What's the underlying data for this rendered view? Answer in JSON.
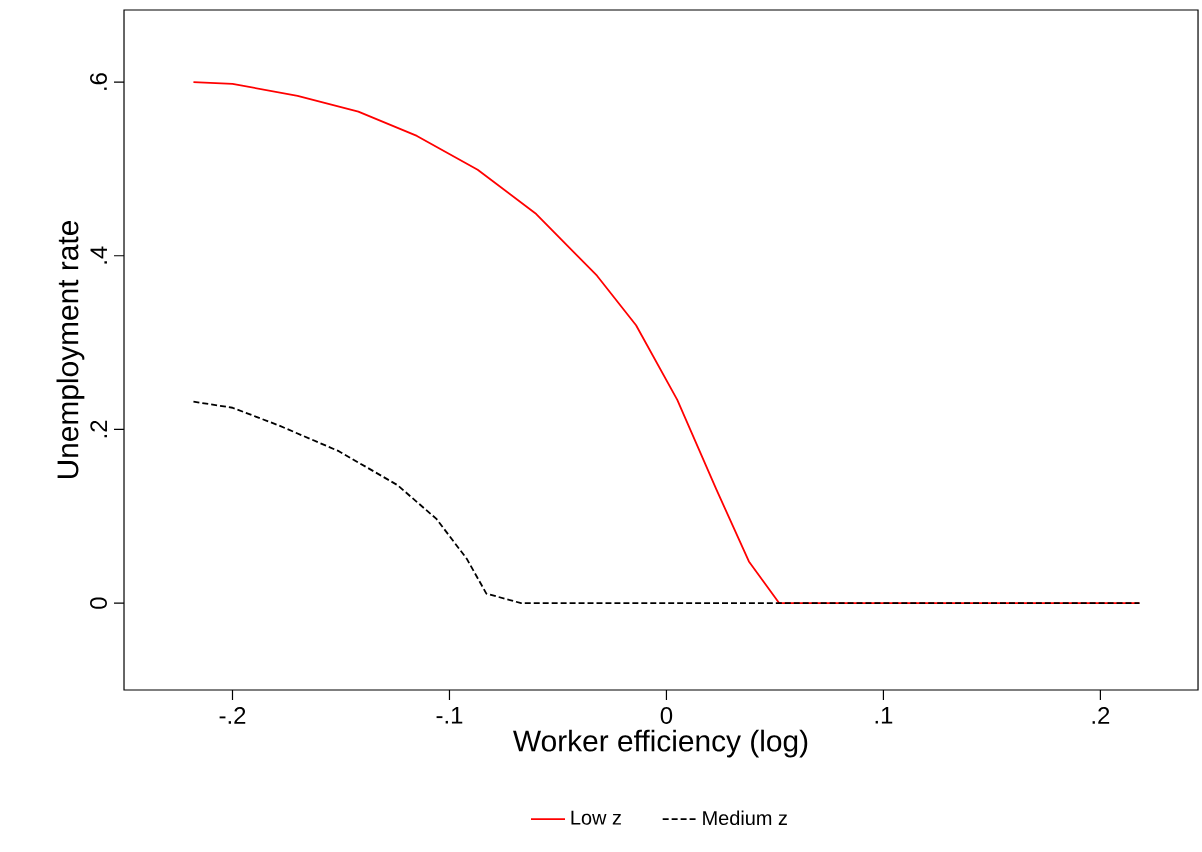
{
  "chart_data": {
    "type": "line",
    "xlabel": "Worker efficiency (log)",
    "ylabel": "Unemployment rate",
    "xlim": [
      -0.25,
      0.245
    ],
    "ylim": [
      -0.1,
      0.683
    ],
    "xticks": [
      {
        "value": -0.2,
        "label": "-.2"
      },
      {
        "value": -0.1,
        "label": "-.1"
      },
      {
        "value": 0,
        "label": "0"
      },
      {
        "value": 0.1,
        "label": ".1"
      },
      {
        "value": 0.2,
        "label": ".2"
      }
    ],
    "yticks": [
      {
        "value": 0,
        "label": "0"
      },
      {
        "value": 0.2,
        "label": ".2"
      },
      {
        "value": 0.4,
        "label": ".4"
      },
      {
        "value": 0.6,
        "label": ".6"
      }
    ],
    "grid": false,
    "legend": "bottom",
    "marker": "none",
    "series": [
      {
        "name": "Low z",
        "color": "#ff0000",
        "line_style": "solid",
        "x": [
          -0.218,
          -0.2,
          -0.17,
          -0.142,
          -0.115,
          -0.087,
          -0.06,
          -0.032,
          -0.014,
          0.005,
          0.023,
          0.038,
          0.052,
          0.1,
          0.15,
          0.218
        ],
        "values": [
          0.6,
          0.598,
          0.584,
          0.566,
          0.538,
          0.499,
          0.448,
          0.377,
          0.32,
          0.234,
          0.131,
          0.048,
          0,
          0,
          0,
          0
        ]
      },
      {
        "name": "Medium z",
        "color": "#000000",
        "line_style": "dashed",
        "x": [
          -0.218,
          -0.2,
          -0.179,
          -0.151,
          -0.124,
          -0.106,
          -0.092,
          -0.083,
          -0.067,
          0,
          0.1,
          0.218
        ],
        "values": [
          0.232,
          0.225,
          0.205,
          0.175,
          0.136,
          0.097,
          0.051,
          0.011,
          0,
          0,
          0,
          0
        ]
      }
    ]
  }
}
